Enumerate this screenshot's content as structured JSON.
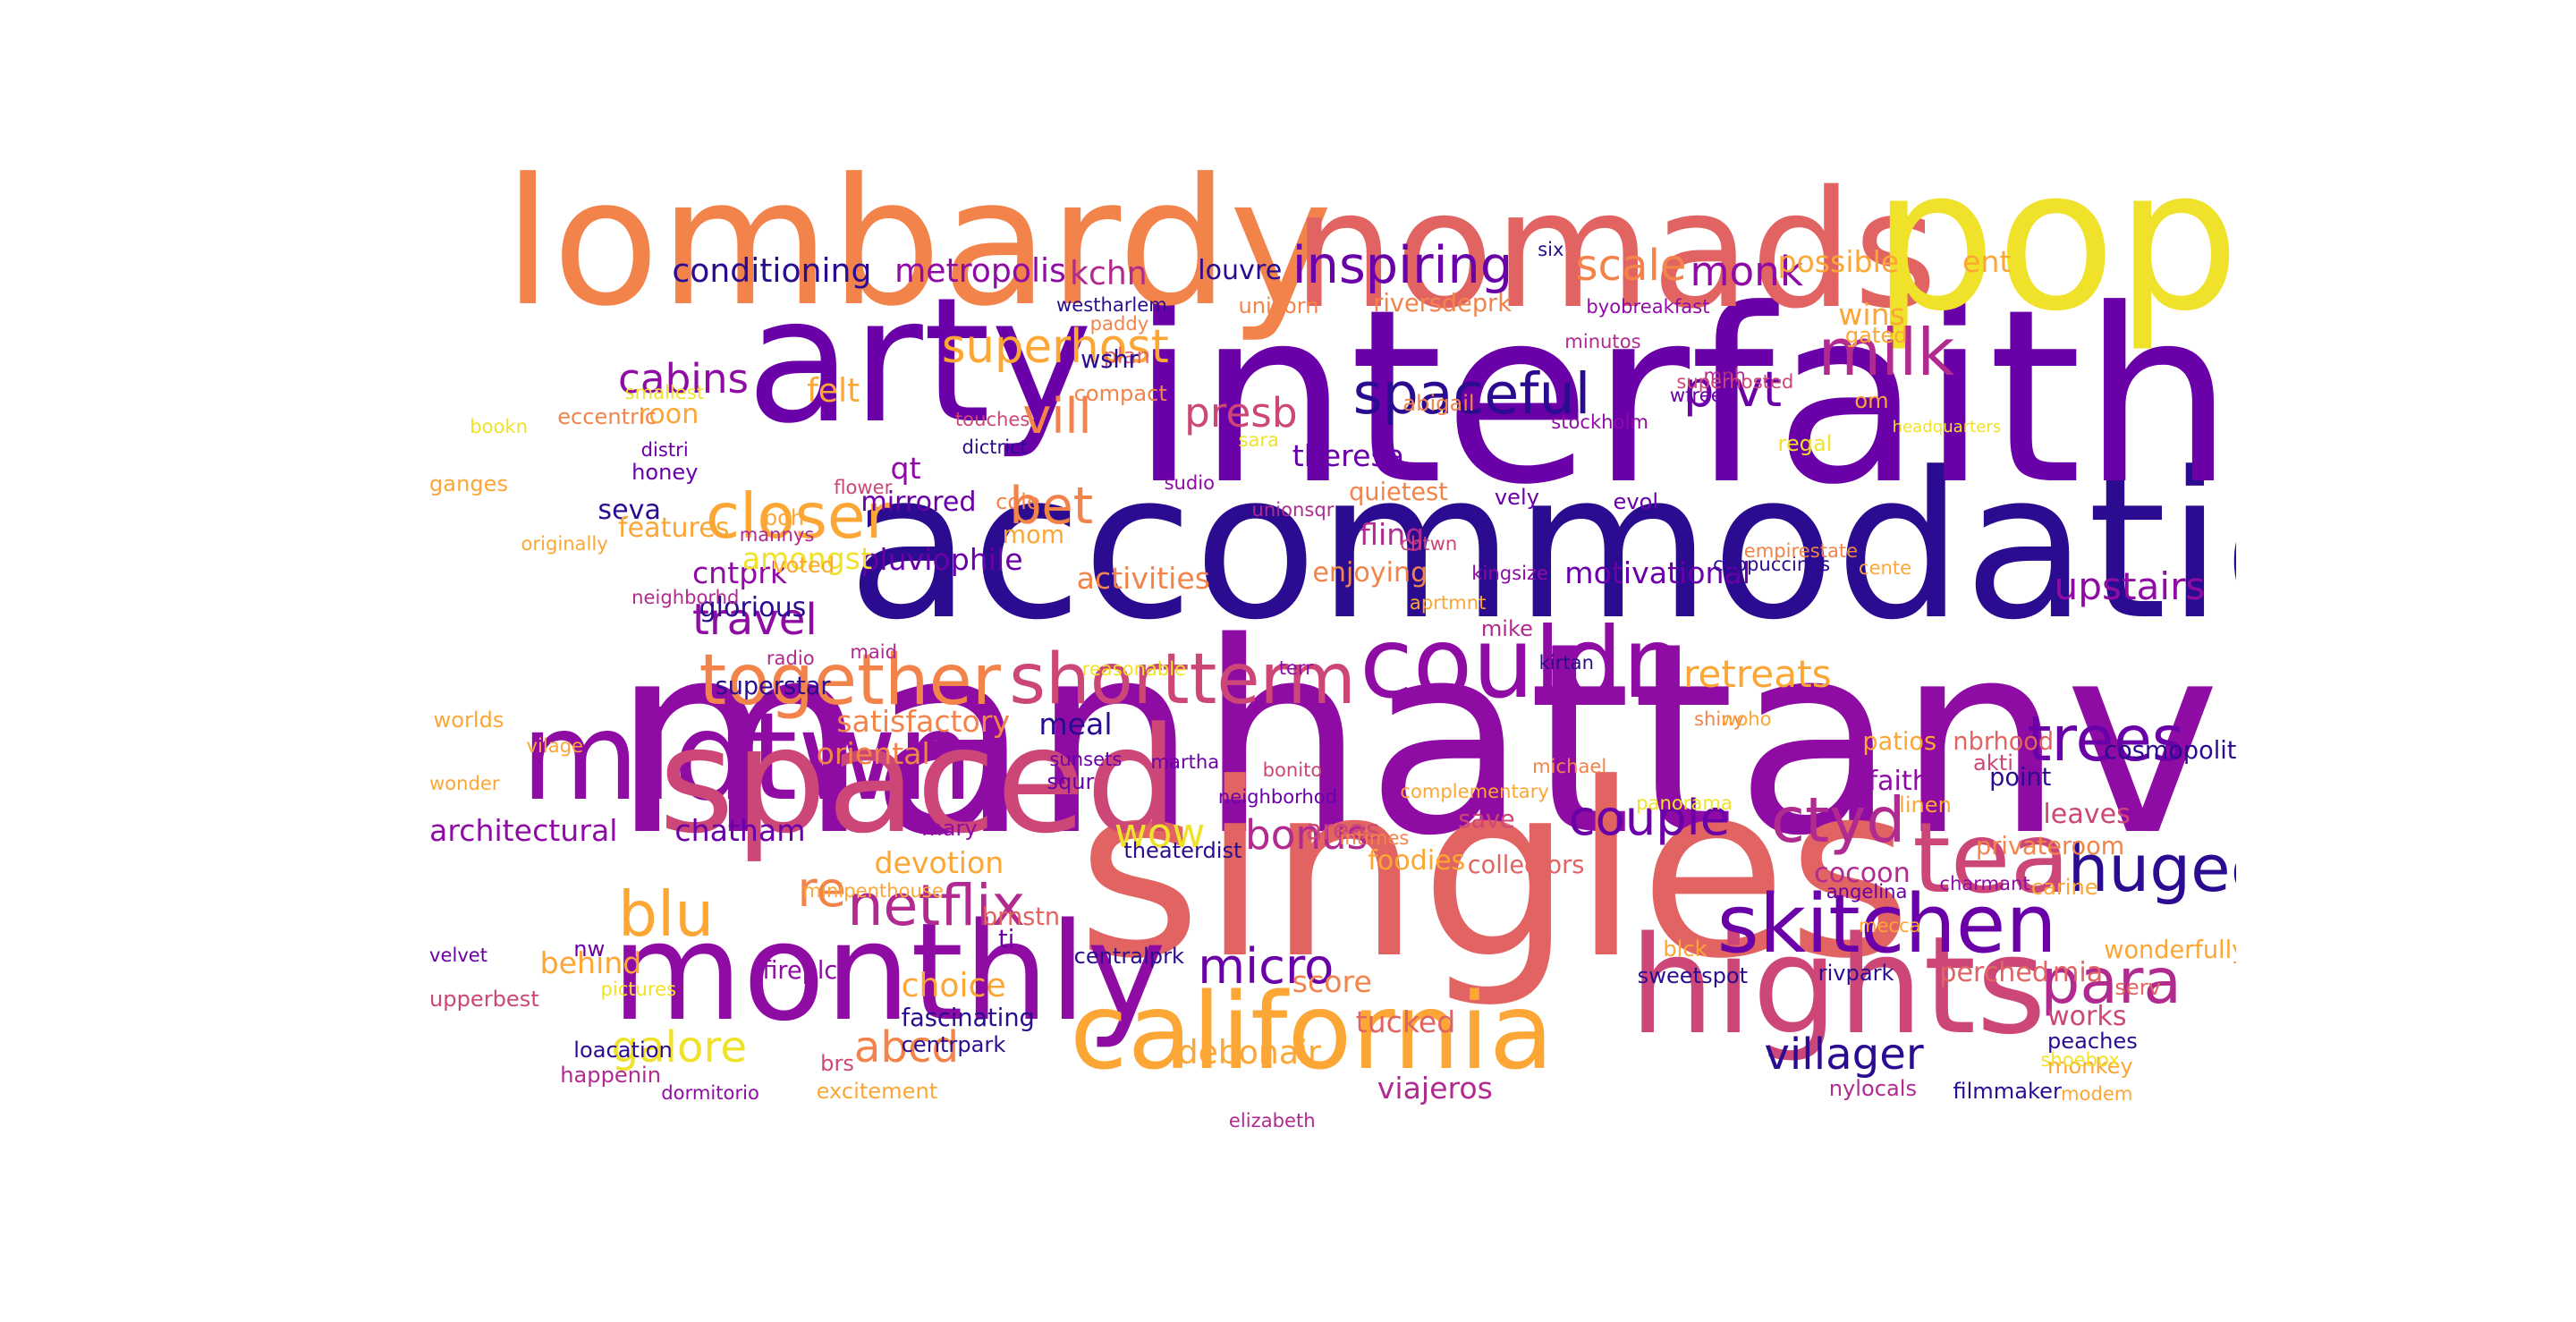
{
  "palette": {
    "deep_blue": "#2b0b8f",
    "violet": "#6a00a8",
    "purple": "#8e0ca4",
    "magenta": "#b12a90",
    "rose": "#cc4778",
    "coral": "#e16462",
    "orange": "#f2844b",
    "amber": "#fca636",
    "yellow": "#f0e22a"
  },
  "words": {
    "manhattanville": "manhattanville",
    "accommodations": "accommodations",
    "interfaith": "interfaith",
    "singles": "singles",
    "lombardy": "lombardy",
    "nomads": "nomads",
    "pop": "pop",
    "arty": "arty",
    "midtwn": "midtwn",
    "spaced": "spaced",
    "monthly": "monthly",
    "hights": "hights",
    "california": "california",
    "couldn": "couldn",
    "shortterm": "shortterm",
    "together": "together",
    "skitchen": "skitchen",
    "tea": "tea",
    "hugedeck": "hugedeck",
    "trees": "trees",
    "para": "para",
    "milk": "milk",
    "spaceful": "spaceful",
    "inspiring": "inspiring",
    "closer": "closer",
    "superhost": "superhost",
    "netflix": "netflix",
    "blu": "blu",
    "ctyd": "ctyd",
    "couple": "couple",
    "micro": "micro",
    "villager": "villager",
    "abcd": "abcd",
    "galore": "galore",
    "prvt": "prvt",
    "upstairs": "upstairs",
    "bet": "bet",
    "vill": "vill",
    "presb": "presb",
    "scale": "scale",
    "monk": "monk",
    "travel": "travel",
    "cabins": "cabins",
    "retreats": "retreats",
    "bonus": "bonus",
    "wow": "wow",
    "re": "re",
    "conditioning": "conditioning",
    "metropolis": "metropolis",
    "kchn": "kchn",
    "louvre": "louvre",
    "felt": "felt",
    "roon": "roon",
    "seva": "seva",
    "cntprk": "cntprk",
    "glorious": "glorious",
    "superstar": "superstar",
    "oriental": "oriental",
    "architectural": "architectural",
    "chatham": "chatham",
    "behind": "behind",
    "pluviophile": "pluviophile",
    "amongst": "amongst",
    "activities": "activities",
    "mirrored": "mirrored",
    "qt": "qt",
    "satisfactory": "satisfactory",
    "meal": "meal",
    "devotion": "devotion",
    "choice": "choice",
    "fascinating": "fascinating",
    "centrpark": "centrpark",
    "debonair": "debonair",
    "score": "score",
    "tucked": "tucked",
    "viajeros": "viajeros",
    "motivational": "motivational",
    "fling": "fling",
    "enjoying": "enjoying",
    "theresa": "theresa",
    "possible": "possible",
    "wins": "wins",
    "ent": "ent",
    "cosmopolitan": "cosmopolitan",
    "leaves": "leaves",
    "privateroom": "privateroom",
    "wonderfully": "wonderfully",
    "works": "works",
    "peaches": "peaches",
    "mia": "mia",
    "perched": "perched",
    "rivpark": "rivpark",
    "cocoon": "cocoon",
    "faith": "faith",
    "point": "point",
    "linen": "linen",
    "patios": "patios",
    "nbrhood": "nbrhood",
    "akti": "akti",
    "nylocals": "nylocals",
    "filmmaker": "filmmaker",
    "areas": "areas",
    "save": "save",
    "foodies": "foodies",
    "collectors": "collectors",
    "sweetspot": "sweetspot",
    "angelina": "angelina",
    "charmant": "charmant",
    "carine": "carine",
    "monkey": "monkey",
    "modem": "modem",
    "serv": "serv",
    "shoebox": "shoebox",
    "mecca": "mecca",
    "blck": "blck",
    "brnstn": "brnstn",
    "ti": "ti",
    "centralprk": "centralprk",
    "theaterdist": "theaterdist",
    "mary": "mary",
    "fireplcs": "fireplcs",
    "brs": "brs",
    "excitement": "excitement",
    "dormitorio": "dormitorio",
    "happenin": "happenin",
    "loacation": "loacation",
    "upperbest": "upperbest",
    "pictures": "pictures",
    "nw": "nw",
    "velvet": "velvet",
    "wonder": "wonder",
    "vilage": "vilage",
    "worlds": "worlds",
    "minipenthouse": "minipenthouse",
    "radio": "radio",
    "maid": "maid",
    "neighborhd": "neighborhd",
    "mannys": "mannys",
    "features": "features",
    "boh": "boh",
    "voted": "voted",
    "mom": "mom",
    "cole": "cole",
    "flower": "flower",
    "honey": "honey",
    "distri": "distri",
    "originally": "originally",
    "eccentric": "eccentric",
    "smallest": "smallest",
    "ganges": "ganges",
    "bookn": "bookn",
    "compact": "compact",
    "touches": "touches",
    "plan": "plan",
    "paddy": "paddy",
    "westharlem": "westharlem",
    "wshr": "wshr",
    "dictrict": "dictrict",
    "unicorn": "unicorn",
    "riversdeprk": "riversdeprk",
    "sara": "sara",
    "abigail": "abigail",
    "sudio": "sudio",
    "unionsqr": "unionsqr",
    "quietest": "quietest",
    "vely": "vely",
    "chtwn": "chtwn",
    "kingsize": "kingsize",
    "aprtmnt": "aprtmnt",
    "mike": "mike",
    "terr": "terr",
    "kirtan": "kirtan",
    "reasonable": "reasonable",
    "sunsets": "sunsets",
    "squr": "squr",
    "martha": "martha",
    "neighborhod": "neighborhod",
    "bonito": "bonito",
    "intimes": "intimes",
    "complementary": "complementary",
    "michael": "michael",
    "shiny": "shiny",
    "woho": "woho",
    "panorama": "panorama",
    "elizabeth": "elizabeth",
    "six": "six",
    "minutos": "minutos",
    "byobreakfast": "byobreakfast",
    "mnh": "mnh",
    "wfree": "wfree",
    "superhosted": "superhosted",
    "stockholm": "stockholm",
    "evol": "evol",
    "cappuccinos": "cappuccinos",
    "empirestate": "empirestate",
    "regal": "regal",
    "om": "om",
    "gated": "gated",
    "headquarters": "headquarters",
    "cente": "cente"
  }
}
